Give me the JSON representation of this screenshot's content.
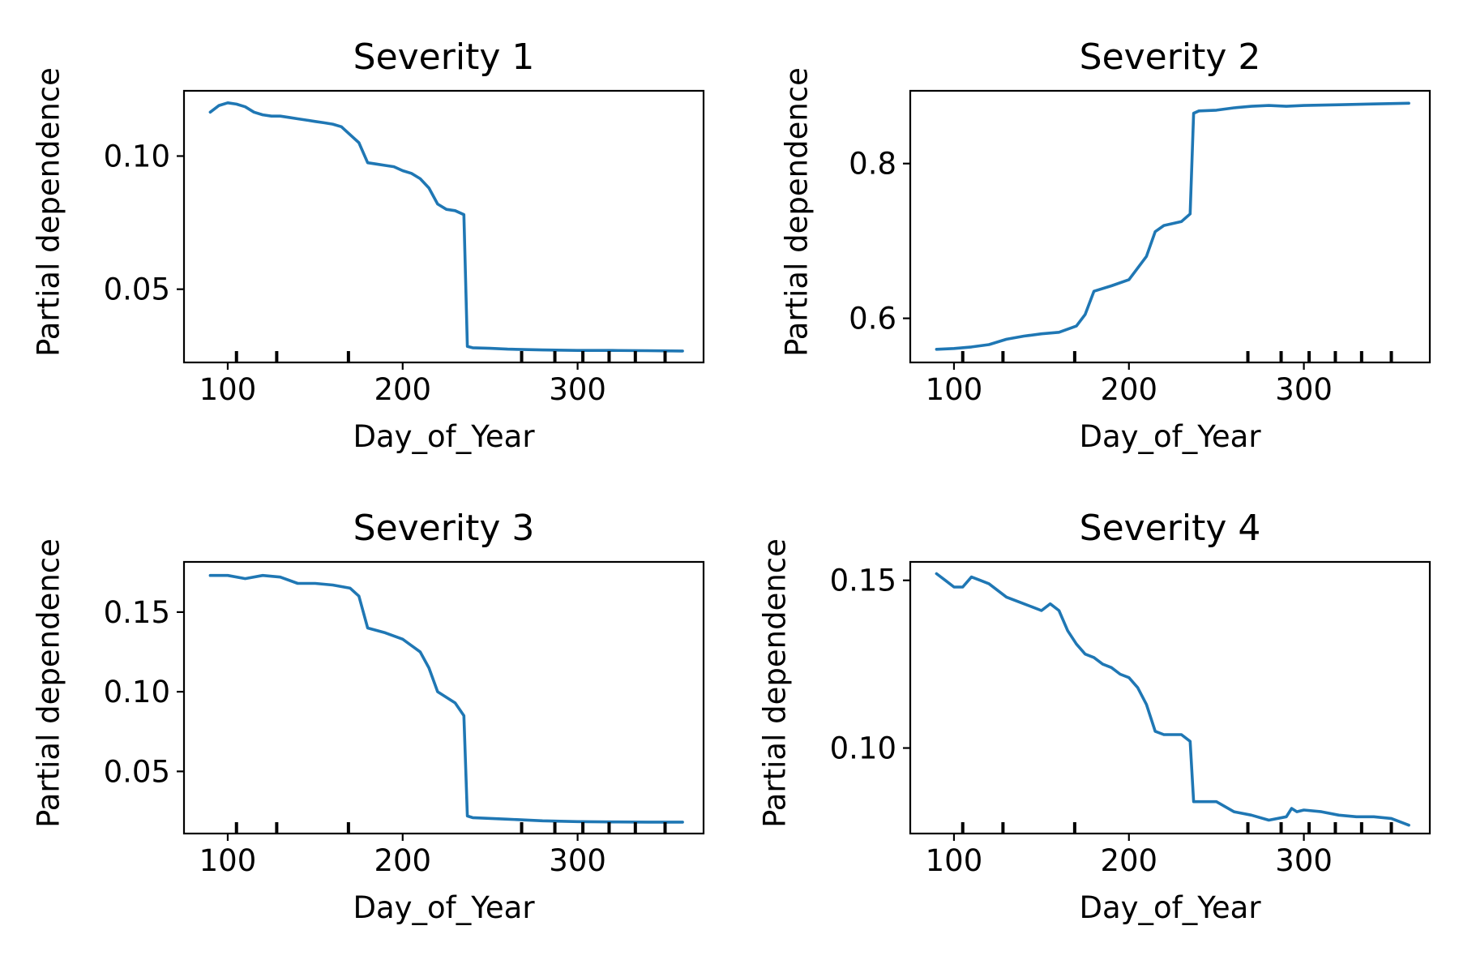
{
  "chart_data": [
    {
      "type": "line",
      "title": "Severity 1",
      "xlabel": "Day_of_Year",
      "ylabel": "Partial dependence",
      "xlim": [
        75,
        372
      ],
      "ylim": [
        0.0225,
        0.1245
      ],
      "xticks": [
        100,
        200,
        300
      ],
      "yticks": [
        0.05,
        0.1
      ],
      "ytick_labels": [
        "0.05",
        "0.10"
      ],
      "color": "#1f77b4",
      "rug": [
        105,
        128,
        169,
        268,
        287,
        303,
        318,
        333,
        350
      ],
      "x": [
        90,
        95,
        100,
        105,
        110,
        115,
        120,
        125,
        130,
        135,
        140,
        145,
        150,
        155,
        160,
        165,
        170,
        175,
        180,
        185,
        190,
        195,
        200,
        205,
        210,
        215,
        220,
        225,
        230,
        235,
        237,
        240,
        250,
        260,
        280,
        300,
        320,
        340,
        360
      ],
      "y": [
        0.1165,
        0.119,
        0.12,
        0.1195,
        0.1185,
        0.1165,
        0.1155,
        0.115,
        0.115,
        0.1145,
        0.114,
        0.1135,
        0.113,
        0.1125,
        0.112,
        0.111,
        0.108,
        0.105,
        0.0975,
        0.097,
        0.0965,
        0.096,
        0.0945,
        0.0935,
        0.0915,
        0.088,
        0.082,
        0.08,
        0.0795,
        0.078,
        0.0285,
        0.028,
        0.0278,
        0.0275,
        0.0272,
        0.027,
        0.027,
        0.0269,
        0.0268
      ]
    },
    {
      "type": "line",
      "title": "Severity 2",
      "xlabel": "Day_of_Year",
      "ylabel": "Partial dependence",
      "xlim": [
        75,
        372
      ],
      "ylim": [
        0.543,
        0.894
      ],
      "xticks": [
        100,
        200,
        300
      ],
      "yticks": [
        0.6,
        0.8
      ],
      "ytick_labels": [
        "0.6",
        "0.8"
      ],
      "color": "#1f77b4",
      "rug": [
        105,
        128,
        169,
        268,
        287,
        303,
        318,
        333,
        350
      ],
      "x": [
        90,
        100,
        110,
        120,
        130,
        140,
        150,
        160,
        170,
        175,
        180,
        190,
        200,
        210,
        215,
        220,
        230,
        235,
        237,
        240,
        250,
        260,
        270,
        280,
        290,
        300,
        320,
        340,
        360
      ],
      "y": [
        0.56,
        0.561,
        0.563,
        0.566,
        0.573,
        0.577,
        0.58,
        0.582,
        0.59,
        0.605,
        0.635,
        0.642,
        0.65,
        0.68,
        0.712,
        0.72,
        0.725,
        0.735,
        0.865,
        0.868,
        0.869,
        0.872,
        0.874,
        0.875,
        0.874,
        0.875,
        0.876,
        0.877,
        0.878
      ]
    },
    {
      "type": "line",
      "title": "Severity 3",
      "xlabel": "Day_of_Year",
      "ylabel": "Partial dependence",
      "xlim": [
        75,
        372
      ],
      "ylim": [
        0.011,
        0.1815
      ],
      "xticks": [
        100,
        200,
        300
      ],
      "yticks": [
        0.05,
        0.1,
        0.15
      ],
      "ytick_labels": [
        "0.05",
        "0.10",
        "0.15"
      ],
      "color": "#1f77b4",
      "rug": [
        105,
        128,
        169,
        268,
        287,
        303,
        318,
        333,
        350
      ],
      "x": [
        90,
        100,
        110,
        120,
        130,
        140,
        150,
        160,
        170,
        175,
        180,
        190,
        200,
        210,
        215,
        220,
        230,
        235,
        237,
        240,
        260,
        280,
        300,
        320,
        340,
        360
      ],
      "y": [
        0.173,
        0.173,
        0.171,
        0.173,
        0.172,
        0.168,
        0.168,
        0.167,
        0.165,
        0.16,
        0.14,
        0.137,
        0.133,
        0.125,
        0.115,
        0.1,
        0.093,
        0.085,
        0.022,
        0.021,
        0.02,
        0.019,
        0.0185,
        0.0183,
        0.0182,
        0.0182
      ]
    },
    {
      "type": "line",
      "title": "Severity 4",
      "xlabel": "Day_of_Year",
      "ylabel": "Partial dependence",
      "xlim": [
        75,
        372
      ],
      "ylim": [
        0.0745,
        0.1555
      ],
      "xticks": [
        100,
        200,
        300
      ],
      "yticks": [
        0.1,
        0.15
      ],
      "ytick_labels": [
        "0.10",
        "0.15"
      ],
      "color": "#1f77b4",
      "rug": [
        105,
        128,
        169,
        268,
        287,
        303,
        318,
        333,
        350
      ],
      "x": [
        90,
        95,
        100,
        105,
        110,
        115,
        120,
        125,
        130,
        135,
        140,
        145,
        150,
        155,
        160,
        165,
        170,
        175,
        180,
        185,
        190,
        195,
        200,
        205,
        210,
        215,
        220,
        225,
        230,
        235,
        237,
        240,
        250,
        260,
        270,
        280,
        290,
        293,
        296,
        300,
        310,
        320,
        330,
        340,
        350,
        360
      ],
      "y": [
        0.152,
        0.15,
        0.148,
        0.148,
        0.151,
        0.15,
        0.149,
        0.147,
        0.145,
        0.144,
        0.143,
        0.142,
        0.141,
        0.143,
        0.141,
        0.135,
        0.131,
        0.128,
        0.127,
        0.125,
        0.124,
        0.122,
        0.121,
        0.118,
        0.113,
        0.105,
        0.104,
        0.104,
        0.104,
        0.102,
        0.084,
        0.084,
        0.084,
        0.081,
        0.08,
        0.0785,
        0.0795,
        0.082,
        0.081,
        0.0815,
        0.081,
        0.08,
        0.0795,
        0.0795,
        0.079,
        0.077
      ]
    }
  ]
}
